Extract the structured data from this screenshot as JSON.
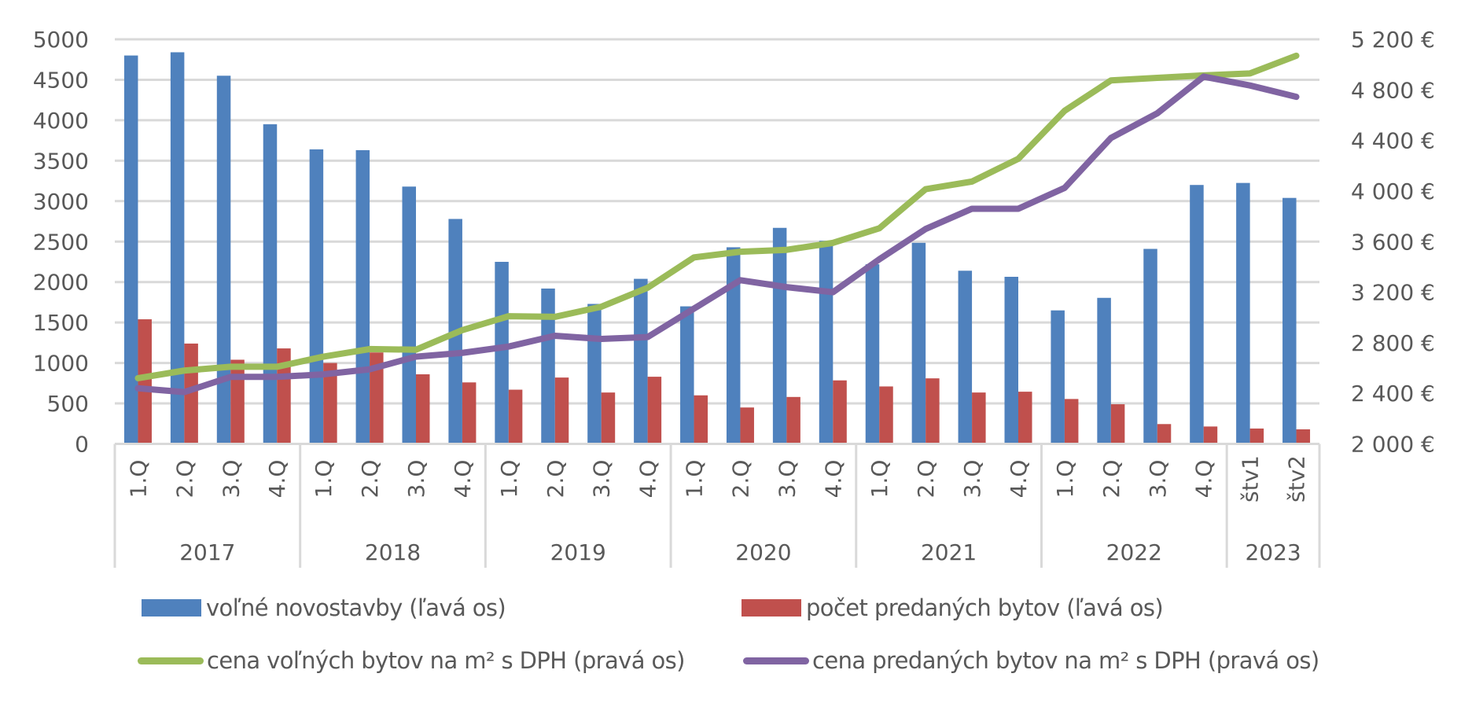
{
  "chart_data": {
    "type": "bar",
    "combo": "clustered bar + line (dual axis)",
    "title": "",
    "categories": [
      {
        "year": "2017",
        "period": "1.Q"
      },
      {
        "year": "2017",
        "period": "2.Q"
      },
      {
        "year": "2017",
        "period": "3.Q"
      },
      {
        "year": "2017",
        "period": "4.Q"
      },
      {
        "year": "2018",
        "period": "1.Q"
      },
      {
        "year": "2018",
        "period": "2.Q"
      },
      {
        "year": "2018",
        "period": "3.Q"
      },
      {
        "year": "2018",
        "period": "4.Q"
      },
      {
        "year": "2019",
        "period": "1.Q"
      },
      {
        "year": "2019",
        "period": "2.Q"
      },
      {
        "year": "2019",
        "period": "3.Q"
      },
      {
        "year": "2019",
        "period": "4.Q"
      },
      {
        "year": "2020",
        "period": "1.Q"
      },
      {
        "year": "2020",
        "period": "2.Q"
      },
      {
        "year": "2020",
        "period": "3.Q"
      },
      {
        "year": "2020",
        "period": "4.Q"
      },
      {
        "year": "2021",
        "period": "1.Q"
      },
      {
        "year": "2021",
        "period": "2.Q"
      },
      {
        "year": "2021",
        "period": "3.Q"
      },
      {
        "year": "2021",
        "period": "4.Q"
      },
      {
        "year": "2022",
        "period": "1.Q"
      },
      {
        "year": "2022",
        "period": "2.Q"
      },
      {
        "year": "2022",
        "period": "3.Q"
      },
      {
        "year": "2022",
        "period": "4.Q"
      },
      {
        "year": "2023",
        "period": "štv1"
      },
      {
        "year": "2023",
        "period": "štv2"
      }
    ],
    "year_groups": [
      {
        "label": "2017",
        "count": 4
      },
      {
        "label": "2018",
        "count": 4
      },
      {
        "label": "2019",
        "count": 4
      },
      {
        "label": "2020",
        "count": 4
      },
      {
        "label": "2021",
        "count": 4
      },
      {
        "label": "2022",
        "count": 4
      },
      {
        "label": "2023",
        "count": 2
      }
    ],
    "left_axis": {
      "min": 0,
      "max": 5000,
      "step": 500,
      "ticks": [
        "0",
        "500",
        "1000",
        "1500",
        "2000",
        "2500",
        "3000",
        "3500",
        "4000",
        "4500",
        "5000"
      ]
    },
    "right_axis": {
      "min": 2000,
      "max": 5200,
      "step": 400,
      "ticks": [
        "2 000 €",
        "2 400 €",
        "2 800 €",
        "3 200 €",
        "3 600 €",
        "4 000 €",
        "4 400 €",
        "4 800 €",
        "5 200 €"
      ]
    },
    "grid": true,
    "legend_position": "bottom",
    "series": [
      {
        "name": "voľné novostavby (ľavá os)",
        "type": "bar",
        "axis": "left",
        "color": "#4f81bd",
        "values": [
          4800,
          4840,
          4550,
          3950,
          3640,
          3630,
          3180,
          2780,
          2250,
          1920,
          1730,
          2040,
          1700,
          2430,
          2670,
          2510,
          2220,
          2485,
          2140,
          2065,
          1650,
          1805,
          2410,
          3200,
          3225,
          3040
        ]
      },
      {
        "name": "počet predaných bytov (ľavá os)",
        "type": "bar",
        "axis": "left",
        "color": "#c0504d",
        "values": [
          1540,
          1240,
          1040,
          1180,
          1000,
          1130,
          860,
          760,
          670,
          820,
          635,
          830,
          600,
          450,
          580,
          785,
          710,
          810,
          635,
          645,
          555,
          490,
          245,
          215,
          190,
          180
        ]
      },
      {
        "name": "cena voľných bytov na m² s DPH (pravá os)",
        "type": "line",
        "axis": "right",
        "color": "#9bbb59",
        "values": [
          2520,
          2580,
          2610,
          2610,
          2690,
          2750,
          2745,
          2900,
          3010,
          3005,
          3085,
          3235,
          3475,
          3520,
          3535,
          3590,
          3705,
          4015,
          4075,
          4255,
          4635,
          4875,
          4895,
          4915,
          4930,
          5070
        ]
      },
      {
        "name": "cena predaných bytov na m² s  DPH (pravá os)",
        "type": "line",
        "axis": "right",
        "color": "#8064a2",
        "values": [
          2440,
          2410,
          2530,
          2530,
          2550,
          2590,
          2690,
          2720,
          2770,
          2855,
          2830,
          2845,
          3070,
          3295,
          3240,
          3200,
          3460,
          3700,
          3860,
          3860,
          4025,
          4420,
          4615,
          4905,
          4835,
          4745
        ]
      }
    ]
  },
  "legend": {
    "items": [
      {
        "label": "voľné novostavby (ľavá os)",
        "kind": "rect",
        "color": "#4f81bd"
      },
      {
        "label": "počet predaných bytov (ľavá os)",
        "kind": "rect",
        "color": "#c0504d"
      },
      {
        "label": "cena voľných bytov na m² s DPH (pravá os)",
        "kind": "line",
        "color": "#9bbb59"
      },
      {
        "label": "cena predaných bytov na m² s  DPH (pravá os)",
        "kind": "line",
        "color": "#8064a2"
      }
    ]
  }
}
